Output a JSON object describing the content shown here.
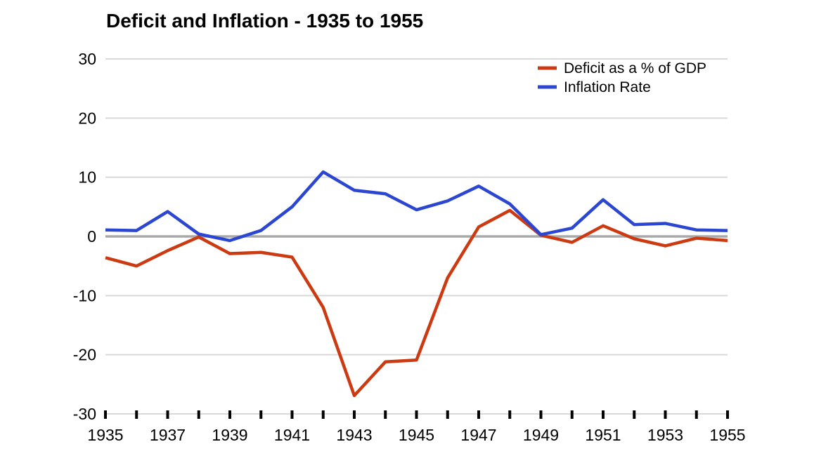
{
  "title": "Deficit and Inflation - 1935 to 1955",
  "chart_data": {
    "type": "line",
    "title": "Deficit and Inflation - 1935 to 1955",
    "xlabel": "",
    "ylabel": "",
    "ylim": [
      -30,
      30
    ],
    "yticks": [
      30,
      20,
      10,
      0,
      -10,
      -20,
      -30
    ],
    "x": [
      1935,
      1936,
      1937,
      1938,
      1939,
      1940,
      1941,
      1942,
      1943,
      1944,
      1945,
      1946,
      1947,
      1948,
      1949,
      1950,
      1951,
      1952,
      1953,
      1954,
      1955
    ],
    "xticks": [
      1935,
      1937,
      1939,
      1941,
      1943,
      1945,
      1947,
      1949,
      1951,
      1953,
      1955
    ],
    "grid": "horizontal",
    "legend_position": "top-right",
    "series": [
      {
        "name": "Deficit as a % of GDP",
        "color": "#cc3a12",
        "values": [
          -3.6,
          -5.0,
          -2.4,
          -0.1,
          -2.9,
          -2.7,
          -3.5,
          -12.0,
          -26.9,
          -21.2,
          -20.9,
          -7.0,
          1.6,
          4.4,
          0.2,
          -1.0,
          1.8,
          -0.4,
          -1.6,
          -0.3,
          -0.7
        ]
      },
      {
        "name": "Inflation Rate",
        "color": "#2b46d0",
        "values": [
          1.1,
          1.0,
          4.2,
          0.4,
          -0.7,
          1.0,
          5.0,
          10.9,
          7.8,
          7.2,
          4.5,
          6.0,
          8.5,
          5.5,
          0.3,
          1.4,
          6.2,
          2.0,
          2.2,
          1.1,
          1.0
        ]
      }
    ],
    "colors": {
      "grid": "#d9d9d9",
      "zero_line": "#a9a9a9",
      "tick": "#000000",
      "text": "#000000"
    }
  }
}
